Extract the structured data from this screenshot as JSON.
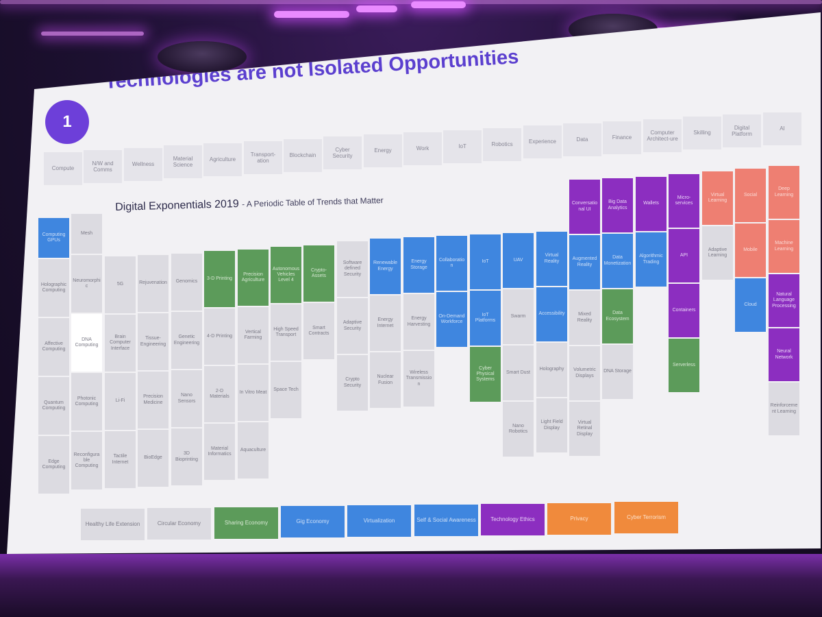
{
  "slide": {
    "number": "1",
    "title": "Technologies are not Isolated Opportunities",
    "table_title": "Digital Exponentials 2019",
    "table_subtitle": "- A Periodic Table of Trends that Matter"
  },
  "categories": [
    "Compute",
    "N/W and Comms",
    "Wellness",
    "Material Science",
    "Agriculture",
    "Transport-ation",
    "Blockchain",
    "Cyber Security",
    "Energy",
    "Work",
    "IoT",
    "Robotics",
    "Experience",
    "Data",
    "Finance",
    "Computer Architect-ure",
    "Skilling",
    "Digital Platform",
    "AI"
  ],
  "columns": [
    {
      "top": 318,
      "cells": [
        {
          "label": "Computing GPUs",
          "color": "blue"
        },
        {
          "label": "Holographic Computing",
          "color": "gray"
        },
        {
          "label": "Affective Computing",
          "color": "gray"
        },
        {
          "label": "Quantum Computing",
          "color": "gray"
        },
        {
          "label": "Edge Computing",
          "color": "gray"
        }
      ]
    },
    {
      "top": 312,
      "cells": [
        {
          "label": "Mesh",
          "color": "gray"
        },
        {
          "label": "Neuromorphic",
          "color": "gray"
        },
        {
          "label": "DNA Computing",
          "color": "white"
        },
        {
          "label": "Photonic Computing",
          "color": "gray"
        },
        {
          "label": "Reconfigurable Computing",
          "color": "gray"
        }
      ]
    },
    {
      "top": 374,
      "cells": [
        {
          "label": "5G",
          "color": "gray"
        },
        {
          "label": "Brain Computer Interface",
          "color": "gray"
        },
        {
          "label": "Li-Fi",
          "color": "gray"
        },
        {
          "label": "Tactile Internet",
          "color": "gray"
        }
      ]
    },
    {
      "top": 372,
      "cells": [
        {
          "label": "Rejuvenation",
          "color": "gray"
        },
        {
          "label": "Tissue-Engineering",
          "color": "gray"
        },
        {
          "label": "Precision Medicine",
          "color": "gray"
        },
        {
          "label": "BioEdge",
          "color": "gray"
        }
      ]
    },
    {
      "top": 370,
      "cells": [
        {
          "label": "Genomics",
          "color": "gray"
        },
        {
          "label": "Genetic Engineering",
          "color": "gray"
        },
        {
          "label": "Nano Sensors",
          "color": "gray"
        },
        {
          "label": "3D Bioprinting",
          "color": "gray"
        }
      ]
    },
    {
      "top": 366,
      "cells": [
        {
          "label": "3-D Printing",
          "color": "green"
        },
        {
          "label": "4-D Printing",
          "color": "gray"
        },
        {
          "label": "2-D Materials",
          "color": "gray"
        },
        {
          "label": "Material Informatics",
          "color": "gray"
        }
      ]
    },
    {
      "top": 364,
      "cells": [
        {
          "label": "Precision Agriculture",
          "color": "green"
        },
        {
          "label": "Vertical Farming",
          "color": "gray"
        },
        {
          "label": "In Vitro Meat",
          "color": "gray"
        },
        {
          "label": "Aquaculture",
          "color": "gray"
        }
      ]
    },
    {
      "top": 360,
      "cells": [
        {
          "label": "Autonomous Vehicles Level 4",
          "color": "green"
        },
        {
          "label": "High Speed Transport",
          "color": "gray"
        },
        {
          "label": "Space Tech",
          "color": "gray"
        }
      ]
    },
    {
      "top": 358,
      "cells": [
        {
          "label": "Crypto-Assets",
          "color": "green"
        },
        {
          "label": "Smart Contracts",
          "color": "gray"
        }
      ]
    },
    {
      "top": 352,
      "cells": [
        {
          "label": "Software defined Security",
          "color": "gray"
        },
        {
          "label": "Adaptive Security",
          "color": "gray"
        },
        {
          "label": "Crypto Security",
          "color": "gray"
        }
      ]
    },
    {
      "top": 348,
      "cells": [
        {
          "label": "Renewable Energy",
          "color": "blue"
        },
        {
          "label": "Energy Internet",
          "color": "gray"
        },
        {
          "label": "Nuclear Fusion",
          "color": "gray"
        }
      ]
    },
    {
      "top": 346,
      "cells": [
        {
          "label": "Energy Storage",
          "color": "blue"
        },
        {
          "label": "Energy Harvesting",
          "color": "gray"
        },
        {
          "label": "Wireless Transmission",
          "color": "gray"
        }
      ]
    },
    {
      "top": 344,
      "cells": [
        {
          "label": "Collaboration",
          "color": "blue"
        },
        {
          "label": "On-Demand Workforce",
          "color": "blue"
        }
      ]
    },
    {
      "top": 342,
      "cells": [
        {
          "label": "IoT",
          "color": "blue"
        },
        {
          "label": "IoT Platforms",
          "color": "blue"
        },
        {
          "label": "Cyber Physical Systems",
          "color": "green"
        }
      ]
    },
    {
      "top": 340,
      "cells": [
        {
          "label": "UAV",
          "color": "blue"
        },
        {
          "label": "Swarm",
          "color": "gray"
        },
        {
          "label": "Smart Dust",
          "color": "gray"
        },
        {
          "label": "Nano Robotics",
          "color": "gray"
        }
      ]
    },
    {
      "top": 338,
      "cells": [
        {
          "label": "Virtual Reality",
          "color": "blue"
        },
        {
          "label": "Accessibility",
          "color": "blue"
        },
        {
          "label": "Holography",
          "color": "gray"
        },
        {
          "label": "Light Field Display",
          "color": "gray"
        }
      ]
    },
    {
      "top": 262,
      "cells": [
        {
          "label": "Conversational UI",
          "color": "purple"
        },
        {
          "label": "Augmented Reality",
          "color": "blue"
        },
        {
          "label": "Mixed Reality",
          "color": "gray"
        },
        {
          "label": "Volumetric Displays",
          "color": "gray"
        },
        {
          "label": "Virtual Retinal Display",
          "color": "gray"
        }
      ]
    },
    {
      "top": 260,
      "cells": [
        {
          "label": "Big Data Analytics",
          "color": "purple"
        },
        {
          "label": "Data Monetization",
          "color": "blue"
        },
        {
          "label": "Data Ecosystem",
          "color": "green"
        },
        {
          "label": "DNA Storage",
          "color": "gray"
        }
      ]
    },
    {
      "top": 258,
      "cells": [
        {
          "label": "Wallets",
          "color": "purple"
        },
        {
          "label": "Algorithmic Trading",
          "color": "blue"
        }
      ]
    },
    {
      "top": 254,
      "cells": [
        {
          "label": "Micro-services",
          "color": "purple"
        },
        {
          "label": "API",
          "color": "purple"
        },
        {
          "label": "Containers",
          "color": "purple"
        },
        {
          "label": "Serverless",
          "color": "green"
        }
      ]
    },
    {
      "top": 250,
      "cells": [
        {
          "label": "Virtual Learning",
          "color": "salmon"
        },
        {
          "label": "Adaptive Learning",
          "color": "gray"
        }
      ]
    },
    {
      "top": 246,
      "cells": [
        {
          "label": "Social",
          "color": "salmon"
        },
        {
          "label": "Mobile",
          "color": "salmon"
        },
        {
          "label": "Cloud",
          "color": "blue"
        }
      ]
    },
    {
      "top": 242,
      "cells": [
        {
          "label": "Deep Learning",
          "color": "salmon"
        },
        {
          "label": "Machine Learning",
          "color": "salmon"
        },
        {
          "label": "Natural Language Processing",
          "color": "purple"
        },
        {
          "label": "Neural Network",
          "color": "purple"
        },
        {
          "label": "Reinforcement Learning",
          "color": "gray"
        }
      ]
    }
  ],
  "legend": [
    {
      "label": "Healthy Life Extension",
      "color": "gray"
    },
    {
      "label": "Circular Economy",
      "color": "gray"
    },
    {
      "label": "Sharing Economy",
      "color": "green"
    },
    {
      "label": "Gig Economy",
      "color": "blue"
    },
    {
      "label": "Virtualization",
      "color": "blue"
    },
    {
      "label": "Self & Social Awareness",
      "color": "blue"
    },
    {
      "label": "Technology Ethics",
      "color": "purple"
    },
    {
      "label": "Privacy",
      "color": "orange"
    },
    {
      "label": "Cyber Terrorism",
      "color": "orange"
    }
  ]
}
